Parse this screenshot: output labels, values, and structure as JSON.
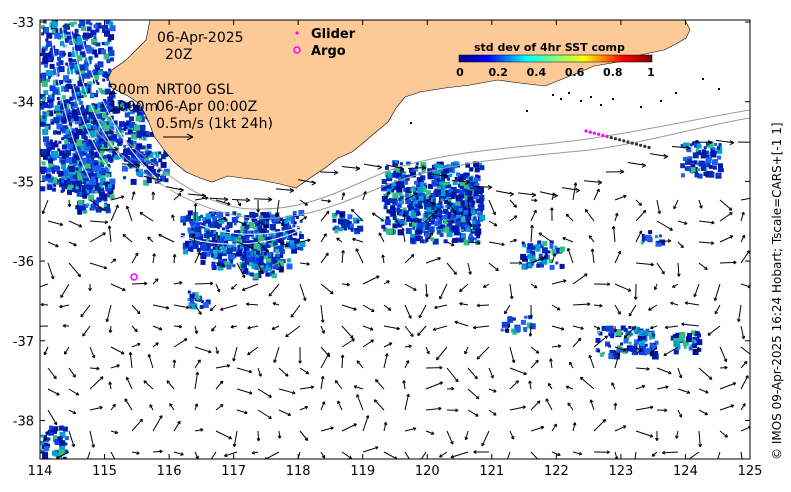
{
  "map": {
    "date": "06-Apr-2025",
    "time": "20Z",
    "isobath_shallow": "200m",
    "isobath_deep": "1000m",
    "product": "NRT00 GSL",
    "product_time": "06-Apr 00:00Z",
    "velocity_scale": "0.5m/s (1kt 24h)",
    "legend_glider": "Glider",
    "legend_argo": "Argo",
    "colorbar_title": "std dev of 4hr SST comp",
    "colorbar_ticks": [
      "0",
      "0.2",
      "0.4",
      "0.6",
      "0.8",
      "1"
    ],
    "credit": "© IMOS 09-Apr-2025 16:24 Hobart; Tscale=CARS+[-1 1]",
    "x_ticks": [
      "114",
      "115",
      "116",
      "117",
      "118",
      "119",
      "120",
      "121",
      "122",
      "123",
      "124",
      "125"
    ],
    "y_ticks": [
      "-33",
      "-34",
      "-35",
      "-36",
      "-37",
      "-38"
    ],
    "land_color": "#fdc996",
    "glider_color": "#ff00ff",
    "argo_color": "#ff00ff"
  }
}
